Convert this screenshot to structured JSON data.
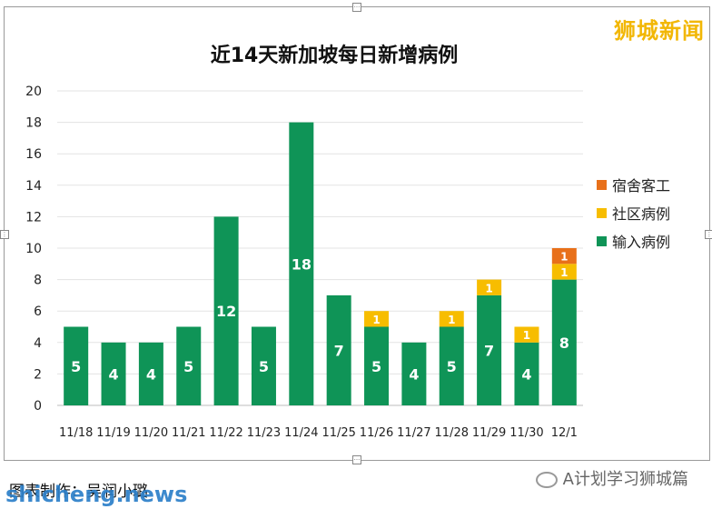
{
  "chart_data": {
    "type": "bar",
    "stacked": true,
    "title": "近14天新加坡每日新增病例",
    "categories": [
      "11/18",
      "11/19",
      "11/20",
      "11/21",
      "11/22",
      "11/23",
      "11/24",
      "11/25",
      "11/26",
      "11/27",
      "11/28",
      "11/29",
      "11/30",
      "12/1"
    ],
    "ylim": [
      0,
      20
    ],
    "yticks": [
      0,
      2,
      4,
      6,
      8,
      10,
      12,
      14,
      16,
      18,
      20
    ],
    "grid": true,
    "legend_position": "right",
    "series": [
      {
        "name": "输入病例",
        "color": "#0f9457",
        "values": [
          5,
          4,
          4,
          5,
          12,
          5,
          18,
          7,
          5,
          4,
          5,
          7,
          4,
          8
        ]
      },
      {
        "name": "社区病例",
        "color": "#f7bd00",
        "values": [
          0,
          0,
          0,
          0,
          0,
          0,
          0,
          0,
          1,
          0,
          1,
          1,
          1,
          1
        ]
      },
      {
        "name": "宿舍客工",
        "color": "#e8701a",
        "values": [
          0,
          0,
          0,
          0,
          0,
          0,
          0,
          0,
          0,
          0,
          0,
          0,
          0,
          1
        ]
      }
    ]
  },
  "brand": "狮城新闻",
  "credit": "图表制作：吴润小璐",
  "watermark": "shicheng.news",
  "account": "A计划学习狮城篇"
}
